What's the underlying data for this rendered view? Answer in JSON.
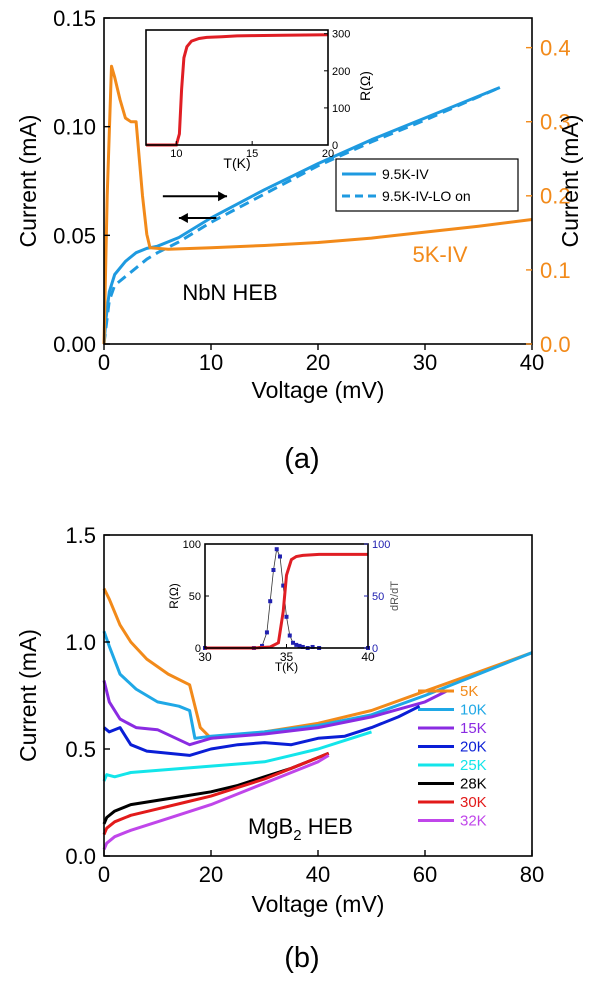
{
  "panels": {
    "a_label": "(a)",
    "b_label": "(b)"
  },
  "chart_data": [
    {
      "type": "line",
      "panel": "a",
      "xlabel": "Voltage (mV)",
      "ylabel": "Current (mA)",
      "y2label": "Current (mA)",
      "xlim": [
        0,
        40
      ],
      "ylim": [
        0,
        0.15
      ],
      "y2lim": [
        0,
        0.44
      ],
      "xticks": [
        "0",
        "10",
        "20",
        "30",
        "40"
      ],
      "yticks": [
        "0.00",
        "0.05",
        "0.10",
        "0.15"
      ],
      "y2ticks": [
        "0.0",
        "0.1",
        "0.2",
        "0.3",
        "0.4"
      ],
      "annotation": "NbN HEB",
      "series": [
        {
          "name": "9.5K-IV",
          "axis": "left",
          "color": "#1e9ae0",
          "dash": "solid",
          "x": [
            0,
            0.2,
            0.5,
            1,
            2,
            3,
            4,
            5,
            7,
            10,
            15,
            20,
            25,
            30,
            37
          ],
          "y": [
            0,
            0.012,
            0.024,
            0.032,
            0.038,
            0.042,
            0.044,
            0.045,
            0.049,
            0.058,
            0.071,
            0.083,
            0.094,
            0.104,
            0.118
          ]
        },
        {
          "name": "9.5K-IV-LO on",
          "axis": "left",
          "color": "#1e9ae0",
          "dash": "dashed",
          "x": [
            0,
            0.2,
            0.5,
            1,
            2,
            3,
            4,
            5,
            7,
            10,
            15,
            20,
            25,
            30,
            37
          ],
          "y": [
            0,
            0.008,
            0.02,
            0.027,
            0.031,
            0.035,
            0.039,
            0.042,
            0.047,
            0.056,
            0.069,
            0.082,
            0.093,
            0.103,
            0.118
          ]
        },
        {
          "name": "5K-IV",
          "axis": "right",
          "color": "#f28a1a",
          "dash": "solid",
          "x": [
            0,
            0.3,
            0.7,
            1,
            1.5,
            2,
            2.5,
            3,
            3.3,
            3.6,
            4,
            4.3,
            6,
            10,
            15,
            20,
            25,
            30,
            35,
            40
          ],
          "y": [
            0.0,
            0.2,
            0.375,
            0.36,
            0.33,
            0.305,
            0.3,
            0.3,
            0.25,
            0.2,
            0.148,
            0.13,
            0.128,
            0.13,
            0.133,
            0.137,
            0.143,
            0.151,
            0.159,
            0.168
          ]
        }
      ],
      "inset": {
        "xlabel": "T(K)",
        "ylabel": "R(Ω)",
        "xlim": [
          8,
          20
        ],
        "ylim": [
          0,
          310
        ],
        "xticks": [
          "10",
          "15",
          "20"
        ],
        "yticks": [
          "0",
          "100",
          "200",
          "300"
        ],
        "series": [
          {
            "color": "#e01e24",
            "x": [
              8,
              10.0,
              10.2,
              10.35,
              10.5,
              10.7,
              11.0,
              11.5,
              12.0,
              13.0,
              14.0,
              15.0,
              17.0,
              20.0
            ],
            "y": [
              0,
              0,
              30,
              150,
              235,
              265,
              280,
              287,
              290,
              292,
              294,
              295,
              296,
              297
            ]
          }
        ]
      },
      "arrows": [
        {
          "dir": "right",
          "x0": 5.5,
          "x1": 11.5,
          "y": 0.068
        },
        {
          "dir": "left",
          "x0": 10.5,
          "x1": 7.0,
          "y": 0.058
        }
      ]
    },
    {
      "type": "line",
      "panel": "b",
      "xlabel": "Voltage (mV)",
      "ylabel": "Current (mA)",
      "xlim": [
        0,
        80
      ],
      "ylim": [
        0,
        1.5
      ],
      "xticks": [
        "0",
        "20",
        "40",
        "60",
        "80"
      ],
      "yticks": [
        "0.0",
        "0.5",
        "1.0",
        "1.5"
      ],
      "annotation": "MgB",
      "annotation_sub": "2",
      "annotation_tail": " HEB",
      "series": [
        {
          "name": "5K",
          "color": "#f28a1a",
          "x": [
            0,
            1,
            3,
            5,
            8,
            12,
            16,
            18,
            20,
            30,
            40,
            50,
            60,
            70,
            80
          ],
          "y": [
            1.25,
            1.2,
            1.08,
            1.0,
            0.92,
            0.85,
            0.8,
            0.6,
            0.55,
            0.58,
            0.62,
            0.68,
            0.77,
            0.86,
            0.95
          ]
        },
        {
          "name": "10K",
          "color": "#1fa8e6",
          "x": [
            0,
            1,
            3,
            6,
            10,
            14,
            16,
            17,
            20,
            30,
            40,
            50,
            60,
            70,
            80
          ],
          "y": [
            1.05,
            0.98,
            0.85,
            0.78,
            0.72,
            0.7,
            0.68,
            0.55,
            0.56,
            0.58,
            0.61,
            0.66,
            0.75,
            0.85,
            0.95
          ]
        },
        {
          "name": "15K",
          "color": "#8a2be2",
          "x": [
            0,
            1,
            3,
            6,
            10,
            16,
            20,
            30,
            40,
            50,
            60,
            64
          ],
          "y": [
            0.82,
            0.72,
            0.64,
            0.6,
            0.59,
            0.52,
            0.55,
            0.57,
            0.6,
            0.65,
            0.72,
            0.77
          ]
        },
        {
          "name": "20K",
          "color": "#0a1ed6",
          "x": [
            0,
            1,
            3,
            5,
            8,
            12,
            16,
            20,
            25,
            30,
            35,
            40,
            45,
            50,
            55,
            59
          ],
          "y": [
            0.6,
            0.58,
            0.6,
            0.52,
            0.49,
            0.48,
            0.47,
            0.5,
            0.52,
            0.53,
            0.52,
            0.55,
            0.56,
            0.6,
            0.65,
            0.7
          ]
        },
        {
          "name": "25K",
          "color": "#13e5ea",
          "x": [
            0,
            0.5,
            2,
            5,
            10,
            15,
            20,
            25,
            30,
            35,
            40,
            45,
            50
          ],
          "y": [
            0.35,
            0.38,
            0.37,
            0.39,
            0.4,
            0.41,
            0.42,
            0.43,
            0.44,
            0.47,
            0.5,
            0.54,
            0.58
          ]
        },
        {
          "name": "28K",
          "color": "#000000",
          "x": [
            0,
            0.5,
            2,
            5,
            10,
            15,
            20,
            25,
            30,
            35,
            40,
            42
          ],
          "y": [
            0.15,
            0.18,
            0.21,
            0.24,
            0.26,
            0.28,
            0.3,
            0.33,
            0.37,
            0.41,
            0.46,
            0.48
          ]
        },
        {
          "name": "30K",
          "color": "#e21a1a",
          "x": [
            0,
            0.5,
            2,
            5,
            10,
            15,
            20,
            25,
            30,
            35,
            40,
            42
          ],
          "y": [
            0.1,
            0.13,
            0.16,
            0.19,
            0.22,
            0.25,
            0.28,
            0.32,
            0.36,
            0.41,
            0.46,
            0.48
          ]
        },
        {
          "name": "32K",
          "color": "#c046ea",
          "x": [
            0,
            0.5,
            2,
            5,
            10,
            15,
            20,
            25,
            30,
            35,
            40,
            42
          ],
          "y": [
            0.03,
            0.06,
            0.09,
            0.12,
            0.16,
            0.2,
            0.24,
            0.29,
            0.34,
            0.39,
            0.44,
            0.47
          ]
        }
      ],
      "inset": {
        "xlabel": "T(K)",
        "ylabel": "R(Ω)",
        "y2label": "dR/dT",
        "xlim": [
          30,
          40
        ],
        "ylim": [
          0,
          100
        ],
        "y2lim": [
          0,
          100
        ],
        "xticks": [
          "30",
          "35",
          "40"
        ],
        "yticks": [
          "0",
          "50",
          "100"
        ],
        "y2ticks": [
          "0",
          "50",
          "100"
        ],
        "series": [
          {
            "name": "R",
            "color": "#e01e24",
            "x": [
              30,
              33,
              34,
              34.5,
              34.8,
              35.0,
              35.3,
              35.6,
              36,
              37,
              38,
              40
            ],
            "y": [
              0,
              0,
              1,
              5,
              35,
              70,
              85,
              88,
              89,
              90,
              90,
              90
            ]
          },
          {
            "name": "dR/dT",
            "color": "#2020b0",
            "x": [
              30,
              33,
              33.5,
              33.8,
              34.0,
              34.2,
              34.4,
              34.6,
              34.8,
              35.0,
              35.2,
              35.4,
              35.6,
              35.8,
              36.0,
              36.3,
              36.6,
              37,
              40
            ],
            "y": [
              0,
              0,
              2,
              15,
              45,
              75,
              95,
              88,
              60,
              30,
              12,
              5,
              3,
              2,
              1,
              0,
              1,
              0,
              0
            ]
          }
        ]
      }
    }
  ]
}
